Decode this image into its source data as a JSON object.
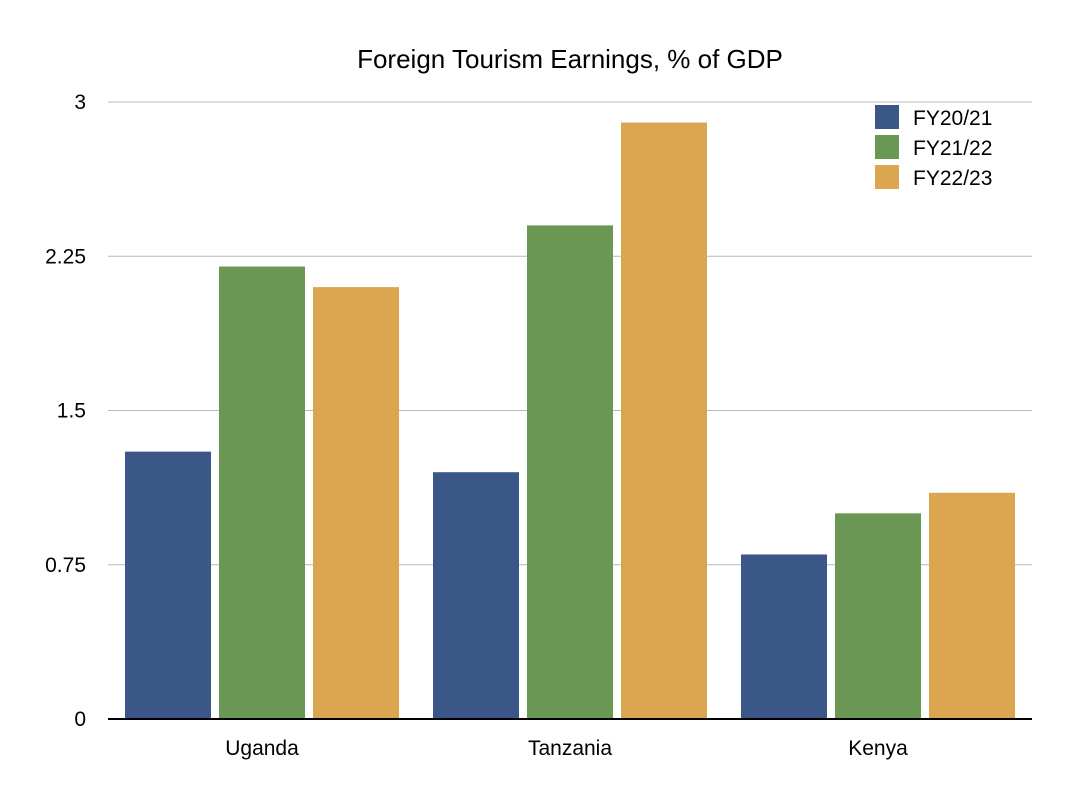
{
  "chart_data": {
    "type": "bar",
    "title": "Foreign Tourism Earnings, % of GDP",
    "xlabel": "",
    "ylabel": "",
    "categories": [
      "Uganda",
      "Tanzania",
      "Kenya"
    ],
    "series": [
      {
        "name": "FY20/21",
        "color": "#3a5787",
        "values": [
          1.3,
          1.2,
          0.8
        ]
      },
      {
        "name": "FY21/22",
        "color": "#6a9753",
        "values": [
          2.2,
          2.4,
          1.0
        ]
      },
      {
        "name": "FY22/23",
        "color": "#dca651",
        "values": [
          2.1,
          2.9,
          1.1
        ]
      }
    ],
    "ylim": [
      0,
      3
    ],
    "yticks": [
      0,
      0.75,
      1.5,
      2.25,
      3
    ],
    "ytick_labels": [
      "0",
      "0.75",
      "1.5",
      "2.25",
      "3"
    ],
    "grid": true,
    "legend_position": "top-right"
  }
}
